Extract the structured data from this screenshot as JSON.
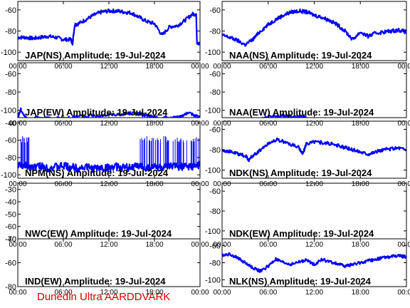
{
  "footer": {
    "text": "Dunedin Ultra AARDDVARK",
    "color": "#d40000"
  },
  "colors": {
    "trace": "#0000ff",
    "axes": "#000000",
    "background": "#ffffff"
  },
  "chart_data": [
    {
      "type": "line",
      "title": "JAP(NS) Amplitude: 19-Jul-2024",
      "xlabel": "",
      "ylabel": "",
      "x_ticks": [
        "00:00",
        "06:00",
        "12:00",
        "18:00",
        "00:00"
      ],
      "xlim": [
        0,
        24
      ],
      "ylim": [
        -108,
        -52
      ],
      "y_ticks": [
        -100,
        -80,
        -60
      ],
      "grid": false,
      "series": [
        {
          "x": [
            0,
            1,
            2,
            3,
            4,
            5,
            6,
            7,
            7.2,
            7.5,
            8,
            9,
            10,
            11,
            12,
            13,
            14,
            15,
            16,
            17,
            18,
            19,
            20,
            21,
            22,
            23,
            23.5,
            23.6,
            24
          ],
          "y": [
            -86,
            -86,
            -87,
            -86,
            -85,
            -86,
            -88,
            -88,
            -92,
            -74,
            -73,
            -69,
            -65,
            -62,
            -61,
            -61,
            -62,
            -63,
            -67,
            -71,
            -73,
            -84,
            -76,
            -75,
            -70,
            -64,
            -64,
            -92,
            -92
          ]
        }
      ]
    },
    {
      "type": "line",
      "title": "NAA(NS) Amplitude: 19-Jul-2024",
      "xlabel": "",
      "ylabel": "",
      "x_ticks": [
        "00:00",
        "06:00",
        "12:00",
        "18:00",
        "00:00"
      ],
      "xlim": [
        0,
        24
      ],
      "ylim": [
        -108,
        -52
      ],
      "y_ticks": [
        -100,
        -80,
        -60
      ],
      "grid": false,
      "series": [
        {
          "x": [
            0,
            1,
            2,
            3,
            4,
            5,
            6,
            7,
            8,
            9,
            10,
            11,
            12,
            13,
            14,
            15,
            16,
            17,
            18,
            19,
            20,
            21,
            22,
            23,
            24
          ],
          "y": [
            -84,
            -86,
            -89,
            -93,
            -88,
            -80,
            -74,
            -69,
            -65,
            -62,
            -61,
            -62,
            -65,
            -67,
            -70,
            -74,
            -80,
            -88,
            -81,
            -85,
            -82,
            -81,
            -80,
            -79,
            -81
          ]
        }
      ]
    },
    {
      "type": "line",
      "title": "JAP(EW) Amplitude: 19-Jul-2024",
      "xlabel": "",
      "ylabel": "",
      "x_ticks": [
        "00:00",
        "06:00",
        "12:00",
        "18:00",
        "00:00"
      ],
      "xlim": [
        0,
        24
      ],
      "ylim": [
        -108,
        -48
      ],
      "y_ticks": [
        -100,
        -80,
        -60
      ],
      "grid": false,
      "series": [
        {
          "x": [
            0,
            0.4,
            1,
            6,
            8,
            10,
            12,
            14,
            15,
            16,
            17,
            18,
            20,
            21,
            22,
            23,
            24
          ],
          "y": [
            -108,
            -99,
            -108,
            -108,
            -107,
            -106,
            -105,
            -104,
            -103,
            -104,
            -106,
            -108,
            -108,
            -108,
            -104,
            -104,
            -108
          ]
        }
      ]
    },
    {
      "type": "line",
      "title": "NAA(EW) Amplitude: 19-Jul-2024",
      "xlabel": "",
      "ylabel": "",
      "x_ticks": [
        "00:00",
        "06:00",
        "12:00",
        "18:00",
        "00:00"
      ],
      "xlim": [
        0,
        24
      ],
      "ylim": [
        -108,
        -48
      ],
      "y_ticks": [
        -100,
        -80,
        -60
      ],
      "grid": false,
      "series": [
        {
          "x": [
            5,
            6,
            7,
            8,
            9,
            10,
            11
          ],
          "y": [
            -108,
            -107,
            -107,
            -106,
            -107,
            -107,
            -108
          ]
        }
      ]
    },
    {
      "type": "line",
      "title": "NPM(NS) Amplitude: 19-Jul-2024",
      "xlabel": "",
      "ylabel": "",
      "x_ticks": [
        "00:00",
        "06:00",
        "12:00",
        "18:00",
        "00:00"
      ],
      "xlim": [
        0,
        24
      ],
      "ylim": [
        -104,
        -38
      ],
      "y_ticks": [
        -100,
        -80,
        -60,
        -40
      ],
      "grid": false,
      "series": [
        {
          "x": [
            0,
            1,
            2,
            3,
            4,
            5,
            6,
            7,
            8,
            9,
            10,
            11,
            12,
            13,
            14,
            15,
            16,
            17,
            18,
            19,
            20,
            21,
            22,
            23,
            24
          ],
          "y": [
            -89,
            -90,
            -91,
            -90,
            -92,
            -91,
            -90,
            -91,
            -92,
            -91,
            -93,
            -92,
            -92,
            -91,
            -92,
            -91,
            -90,
            -92,
            -91,
            -92,
            -91,
            -90,
            -91,
            -90,
            -89
          ]
        }
      ]
    },
    {
      "type": "line",
      "title": "NDK(NS) Amplitude: 19-Jul-2024",
      "xlabel": "",
      "ylabel": "",
      "x_ticks": [
        "00:00",
        "06:00",
        "12:00",
        "18:00",
        "00:00"
      ],
      "xlim": [
        0,
        24
      ],
      "ylim": [
        -108,
        -52
      ],
      "y_ticks": [
        -100,
        -80,
        -60
      ],
      "grid": false,
      "series": [
        {
          "x": [
            0,
            1,
            2,
            3,
            3.5,
            4,
            5,
            6,
            7,
            8,
            9,
            10,
            10.5,
            11,
            12,
            13,
            14,
            15,
            16,
            17,
            18,
            19,
            20,
            21,
            22,
            23,
            24
          ],
          "y": [
            -80,
            -82,
            -84,
            -86,
            -90,
            -86,
            -80,
            -74,
            -70,
            -72,
            -75,
            -78,
            -84,
            -74,
            -72,
            -73,
            -74,
            -76,
            -78,
            -80,
            -82,
            -84,
            -82,
            -80,
            -79,
            -78,
            -80
          ]
        }
      ]
    },
    {
      "type": "line",
      "title": "NWC(EW) Amplitude: 19-Jul-2024",
      "xlabel": "",
      "ylabel": "",
      "x_ticks": [
        "00:00",
        "06:00",
        "12:00",
        "18:00",
        "00:00"
      ],
      "xlim": [
        0,
        24
      ],
      "ylim": [
        -70,
        -25
      ],
      "y_ticks": [
        -70,
        -60,
        -50,
        -40,
        -30
      ],
      "grid": false,
      "series": []
    },
    {
      "type": "line",
      "title": "NDK(EW) Amplitude: 19-Jul-2024",
      "xlabel": "",
      "ylabel": "",
      "x_ticks": [
        "00:00",
        "06:00",
        "12:00",
        "18:00",
        "00:00"
      ],
      "xlim": [
        0,
        24
      ],
      "ylim": [
        -108,
        -52
      ],
      "y_ticks": [
        -100,
        -80,
        -60
      ],
      "grid": false,
      "series": []
    },
    {
      "type": "line",
      "title": "IND(EW) Amplitude: 19-Jul-2024",
      "xlabel": "",
      "ylabel": "",
      "x_ticks": [
        "00:00",
        "06:00",
        "12:00",
        "18:00",
        "00:00"
      ],
      "xlim": [
        0,
        24
      ],
      "ylim": [
        -80,
        -40
      ],
      "y_ticks": [
        -80,
        -60,
        -40
      ],
      "grid": false,
      "series": []
    },
    {
      "type": "line",
      "title": "NLK(NS) Amplitude: 19-Jul-2024",
      "xlabel": "",
      "ylabel": "",
      "x_ticks": [
        "00:00",
        "06:00",
        "12:00",
        "18:00",
        "00:00"
      ],
      "xlim": [
        0,
        24
      ],
      "ylim": [
        -108,
        -52
      ],
      "y_ticks": [
        -100,
        -80,
        -60
      ],
      "grid": false,
      "series": [
        {
          "x": [
            0,
            1,
            2,
            3,
            4,
            5,
            6,
            7,
            8,
            9,
            10,
            11,
            12,
            13,
            14,
            15,
            16,
            17,
            18,
            19,
            20,
            21,
            22,
            23,
            24
          ],
          "y": [
            -71,
            -70,
            -74,
            -80,
            -86,
            -90,
            -84,
            -76,
            -80,
            -82,
            -79,
            -77,
            -82,
            -76,
            -79,
            -81,
            -84,
            -82,
            -80,
            -78,
            -76,
            -74,
            -73,
            -72,
            -73
          ]
        }
      ]
    }
  ]
}
